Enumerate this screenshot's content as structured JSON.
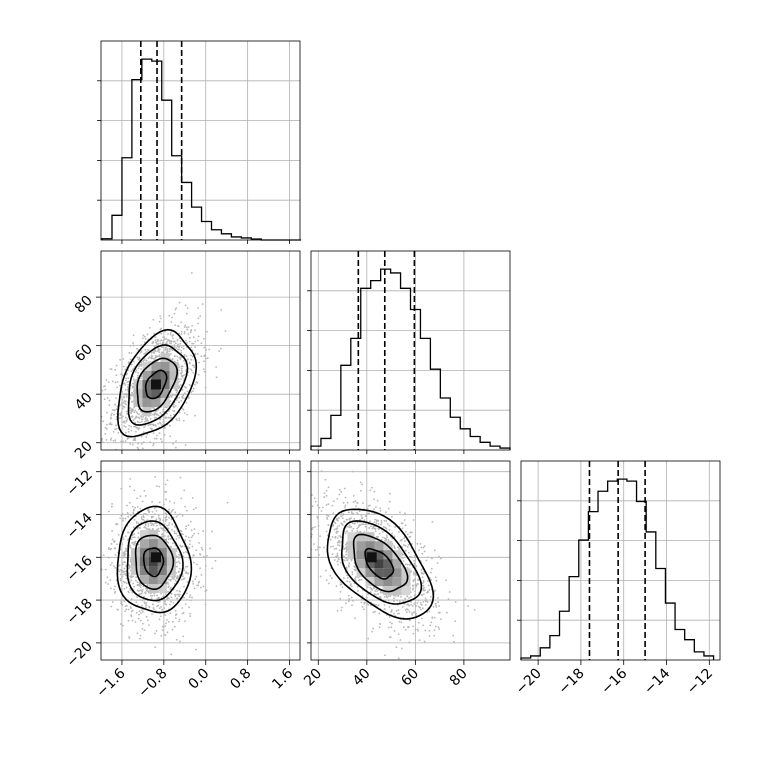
{
  "chart_data": {
    "type": "corner",
    "grid": true,
    "parameters": [
      {
        "range": [
          -2.0,
          1.8
        ],
        "ticks": [
          -1.6,
          -0.8,
          0.0,
          0.8,
          1.6
        ],
        "tick_labels": [
          "−1.6",
          "−0.8",
          "0.0",
          "0.8",
          "1.6"
        ]
      },
      {
        "range": [
          17,
          99
        ],
        "ticks": [
          20,
          40,
          60,
          80
        ],
        "tick_labels": [
          "20",
          "40",
          "60",
          "80"
        ]
      },
      {
        "range": [
          -20.8,
          -11.5
        ],
        "ticks": [
          -20,
          -18,
          -16,
          -14,
          -12
        ],
        "tick_labels": [
          "−20",
          "−18",
          "−16",
          "−14",
          "−12"
        ]
      }
    ],
    "diagonal": [
      {
        "param": 0,
        "bin_edges": [
          -1.98,
          -1.79,
          -1.6,
          -1.41,
          -1.22,
          -1.03,
          -0.84,
          -0.65,
          -0.46,
          -0.27,
          -0.08,
          0.11,
          0.3,
          0.49,
          0.68,
          0.87,
          1.06,
          1.25,
          1.44,
          1.63,
          1.82
        ],
        "counts": [
          0.6,
          12,
          40,
          78,
          88,
          87,
          68,
          41,
          28,
          16,
          9,
          5,
          3,
          1.5,
          1,
          0.5,
          0,
          0,
          0,
          0
        ],
        "quantiles": [
          -1.24,
          -0.93,
          -0.46
        ]
      },
      {
        "param": 1,
        "bin_edges": [
          17,
          21.1,
          25.2,
          29.3,
          33.4,
          37.5,
          41.6,
          45.7,
          49.8,
          53.9,
          58,
          62.1,
          66.2,
          70.3,
          74.4,
          78.5,
          82.6,
          86.7,
          90.8,
          94.9,
          99
        ],
        "counts": [
          2,
          6,
          18,
          44,
          58,
          84,
          88,
          94,
          92,
          84,
          73,
          58,
          42,
          27,
          17,
          11,
          7,
          4,
          2,
          1
        ],
        "quantiles": [
          36.5,
          47.4,
          59.6
        ]
      },
      {
        "param": 2,
        "bin_edges": [
          -20.8,
          -20.35,
          -19.9,
          -19.45,
          -19.0,
          -18.55,
          -18.1,
          -17.65,
          -17.2,
          -16.75,
          -16.3,
          -15.85,
          -15.4,
          -14.95,
          -14.5,
          -14.05,
          -13.6,
          -13.15,
          -12.7,
          -12.25,
          -11.8
        ],
        "counts": [
          1,
          2,
          6,
          12,
          24,
          41,
          59,
          73,
          83,
          88,
          89,
          88,
          78,
          63,
          45,
          28,
          15,
          10,
          4,
          2
        ],
        "quantiles": [
          -17.6,
          -16.26,
          -15.0
        ]
      }
    ],
    "pairs": [
      {
        "x_param": 0,
        "y_param": 1,
        "center": [
          -0.95,
          44
        ],
        "spread": [
          0.36,
          10.5
        ],
        "correlation": 0.45,
        "peak": [
          -0.95,
          44
        ]
      },
      {
        "x_param": 0,
        "y_param": 2,
        "center": [
          -1.0,
          -16.2
        ],
        "spread": [
          0.34,
          1.2
        ],
        "correlation": -0.05,
        "peak": [
          -0.95,
          -16.0
        ]
      },
      {
        "x_param": 1,
        "y_param": 2,
        "center": [
          45,
          -16.3
        ],
        "spread": [
          10.5,
          1.25
        ],
        "correlation": -0.55,
        "peak": [
          42,
          -16.0
        ]
      }
    ]
  }
}
